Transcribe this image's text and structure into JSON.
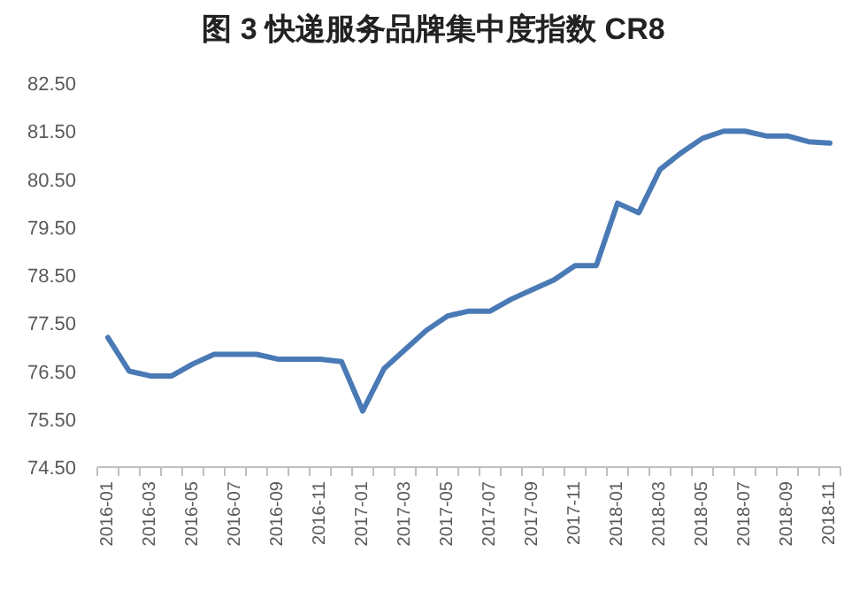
{
  "chart_data": {
    "type": "line",
    "title": "图 3 快递服务品牌集中度指数 CR8",
    "categories": [
      "2016-01",
      null,
      "2016-03",
      null,
      "2016-05",
      null,
      "2016-07",
      null,
      "2016-09",
      null,
      "2016-11",
      null,
      "2017-01",
      null,
      "2017-03",
      null,
      "2017-05",
      null,
      "2017-07",
      null,
      "2017-09",
      null,
      "2017-11",
      null,
      "2018-01",
      null,
      "2018-03",
      null,
      "2018-05",
      null,
      "2018-07",
      null,
      "2018-09",
      null,
      "2018-11"
    ],
    "series": [
      {
        "color": "#4a7ab5",
        "values": [
          77.2,
          76.5,
          76.4,
          76.4,
          76.65,
          76.85,
          76.85,
          76.85,
          76.75,
          76.75,
          76.75,
          76.7,
          75.67,
          76.55,
          76.95,
          77.35,
          77.65,
          77.75,
          77.75,
          78.0,
          78.2,
          78.4,
          78.7,
          78.7,
          80.0,
          79.8,
          80.7,
          81.05,
          81.35,
          81.5,
          81.5,
          81.4,
          81.4,
          81.28,
          81.25
        ]
      }
    ],
    "ylim": [
      74.5,
      82.5
    ],
    "yticks": [
      {
        "value": 74.5,
        "label": "74.50"
      },
      {
        "value": 75.5,
        "label": "75.50"
      },
      {
        "value": 76.5,
        "label": "76.50"
      },
      {
        "value": 77.5,
        "label": "77.50"
      },
      {
        "value": 78.5,
        "label": "78.50"
      },
      {
        "value": 79.5,
        "label": "79.50"
      },
      {
        "value": 80.5,
        "label": "80.50"
      },
      {
        "value": 81.5,
        "label": "81.50"
      },
      {
        "value": 82.5,
        "label": "82.50"
      }
    ],
    "grid": false,
    "marker": "none",
    "line_style": "solid"
  }
}
